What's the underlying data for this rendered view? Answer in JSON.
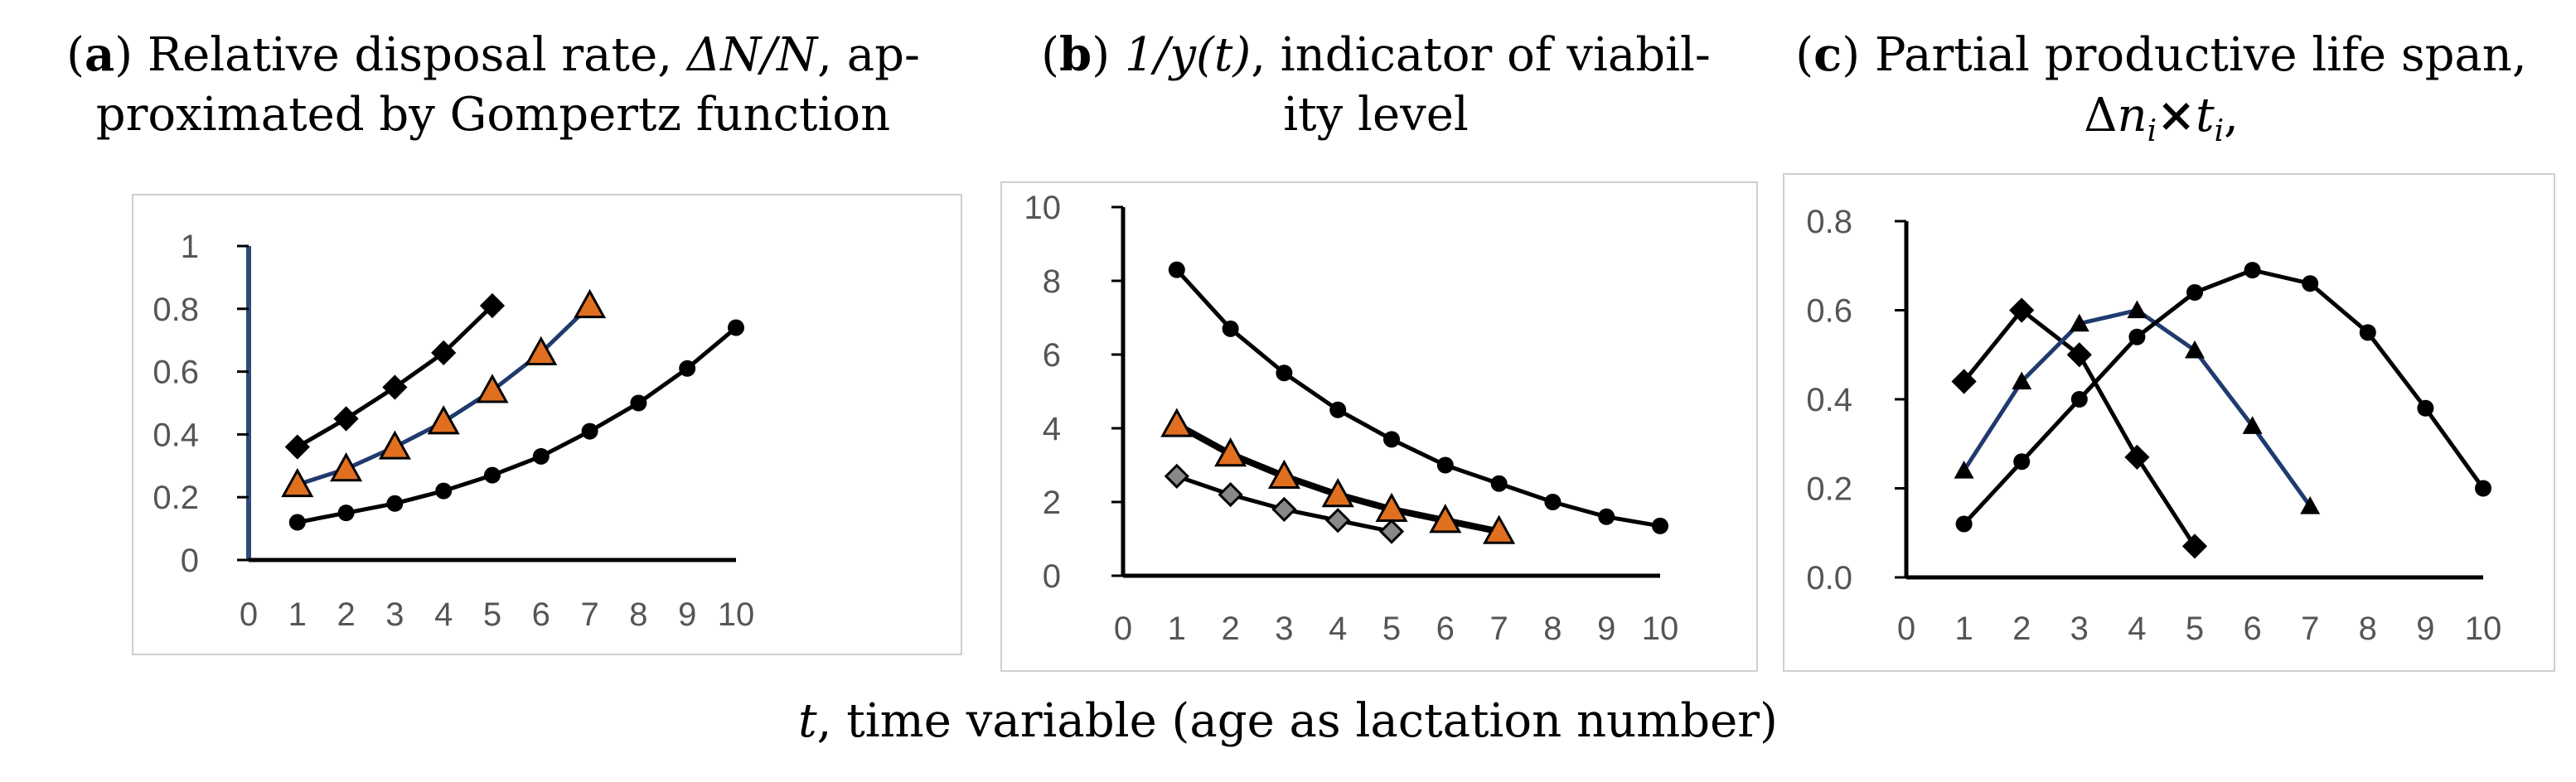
{
  "panels": [
    {
      "letter": "a",
      "title_main": ") Relative disposal rate, ",
      "title_symbol": "ΔN/N",
      "title_rest": ", ap-",
      "title_line2": "proximated by Gompertz function"
    },
    {
      "letter": "b",
      "title_italic": "1/y(t)",
      "title_main": ", indicator of viabil-",
      "title_line2": "ity level"
    },
    {
      "letter": "c",
      "title_main": ") Partial productive life span,",
      "title_line2_a": "Δ",
      "title_line2_b": "n",
      "title_line2_c": "i",
      "title_line2_d": "×",
      "title_line2_e": "t",
      "title_line2_f": "i",
      "title_line2_g": ","
    }
  ],
  "xlabel": {
    "symbol": "t",
    "text": ", time variable (age as lactation number)"
  },
  "colors": {
    "black": "#000000",
    "navy": "#1f3a6e",
    "orange": "#e07020",
    "grey_marker": "#888888",
    "axis": "#777777",
    "frame": "#cfcfcf"
  },
  "chart_data": [
    {
      "type": "line",
      "panel": "a",
      "xlim": [
        0,
        10
      ],
      "ylim": [
        0,
        1
      ],
      "x_ticks": [
        "0",
        "1",
        "2",
        "3",
        "4",
        "5",
        "6",
        "7",
        "8",
        "9",
        "10"
      ],
      "y_ticks": [
        "0",
        "0.2",
        "0.4",
        "0.6",
        "0.8",
        "1"
      ],
      "series": [
        {
          "marker": "diamond",
          "color": "#000000",
          "x": [
            1,
            2,
            3,
            4,
            5
          ],
          "y": [
            0.36,
            0.45,
            0.55,
            0.66,
            0.81
          ]
        },
        {
          "marker": "triangle-orange",
          "color": "#1f3a6e",
          "x": [
            1,
            2,
            3,
            4,
            5,
            6,
            7
          ],
          "y": [
            0.24,
            0.29,
            0.36,
            0.44,
            0.54,
            0.66,
            0.81
          ]
        },
        {
          "marker": "circle",
          "color": "#000000",
          "x": [
            1,
            2,
            3,
            4,
            5,
            6,
            7,
            8,
            9,
            10
          ],
          "y": [
            0.12,
            0.15,
            0.18,
            0.22,
            0.27,
            0.33,
            0.41,
            0.5,
            0.61,
            0.74
          ]
        }
      ]
    },
    {
      "type": "line",
      "panel": "b",
      "xlim": [
        0,
        10
      ],
      "ylim": [
        0,
        10
      ],
      "x_ticks": [
        "0",
        "1",
        "2",
        "3",
        "4",
        "5",
        "6",
        "7",
        "8",
        "9",
        "10"
      ],
      "y_ticks": [
        "0",
        "2",
        "4",
        "6",
        "8",
        "10"
      ],
      "series": [
        {
          "marker": "circle",
          "color": "#000000",
          "x": [
            1,
            2,
            3,
            4,
            5,
            6,
            7,
            8,
            9,
            10
          ],
          "y": [
            8.3,
            6.7,
            5.5,
            4.5,
            3.7,
            3.0,
            2.5,
            2.0,
            1.6,
            1.35
          ]
        },
        {
          "marker": "triangle-orange",
          "color": "#000000",
          "x": [
            1,
            2,
            3,
            4,
            5,
            6,
            7
          ],
          "y": [
            4.1,
            3.3,
            2.7,
            2.2,
            1.8,
            1.5,
            1.2
          ]
        },
        {
          "marker": "diamond-grey",
          "color": "#000000",
          "x": [
            1,
            2,
            3,
            4,
            5
          ],
          "y": [
            2.7,
            2.2,
            1.8,
            1.5,
            1.2
          ]
        }
      ]
    },
    {
      "type": "line",
      "panel": "c",
      "xlim": [
        0,
        10
      ],
      "ylim": [
        0,
        0.8
      ],
      "x_ticks": [
        "0",
        "1",
        "2",
        "3",
        "4",
        "5",
        "6",
        "7",
        "8",
        "9",
        "10"
      ],
      "y_ticks": [
        "0.0",
        "0.2",
        "0.4",
        "0.6",
        "0.8"
      ],
      "series": [
        {
          "marker": "diamond",
          "color": "#000000",
          "x": [
            1,
            2,
            3,
            4,
            5
          ],
          "y": [
            0.44,
            0.6,
            0.5,
            0.27,
            0.07
          ]
        },
        {
          "marker": "triangle",
          "color": "#1f3a6e",
          "x": [
            1,
            2,
            3,
            4,
            5,
            6,
            7
          ],
          "y": [
            0.24,
            0.44,
            0.57,
            0.6,
            0.51,
            0.34,
            0.16
          ]
        },
        {
          "marker": "circle",
          "color": "#000000",
          "x": [
            1,
            2,
            3,
            4,
            5,
            6,
            7,
            8,
            9,
            10
          ],
          "y": [
            0.12,
            0.26,
            0.4,
            0.54,
            0.64,
            0.69,
            0.66,
            0.55,
            0.38,
            0.2
          ]
        }
      ]
    }
  ]
}
